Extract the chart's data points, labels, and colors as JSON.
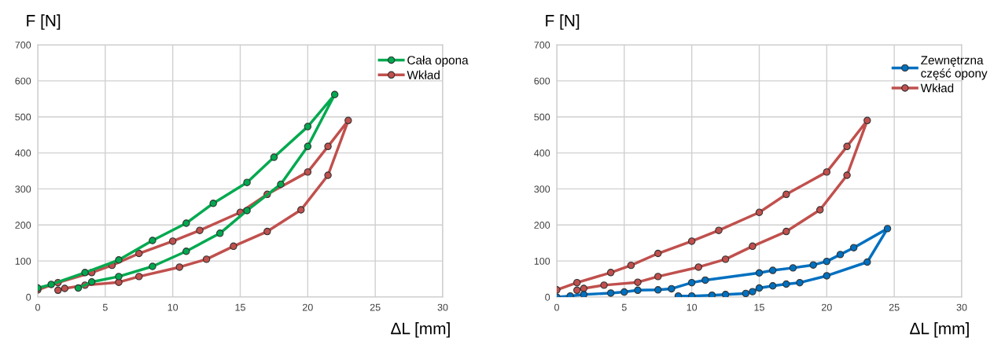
{
  "chart_data": [
    {
      "type": "line",
      "xlabel": "ΔL [mm]",
      "ylabel": "F [N]",
      "xlim": [
        0,
        30
      ],
      "ylim": [
        0,
        700
      ],
      "xticks": [
        0,
        5,
        10,
        15,
        20,
        25,
        30
      ],
      "yticks": [
        0,
        100,
        200,
        300,
        400,
        500,
        600,
        700
      ],
      "grid": true,
      "legend": "top right",
      "marker": "circle",
      "line_style": "solid",
      "series": [
        {
          "name": "Cała opona",
          "color": "#00a94f",
          "x": [
            0,
            1,
            3.5,
            6,
            8.5,
            11,
            13,
            15.5,
            17.5,
            20,
            22,
            20,
            18,
            15.5,
            13.5,
            11,
            8.5,
            6,
            4,
            3
          ],
          "values": [
            25,
            35,
            68,
            103,
            157,
            205,
            260,
            318,
            388,
            473,
            562,
            418,
            313,
            240,
            177,
            127,
            85,
            57,
            42,
            25
          ]
        },
        {
          "name": "Wkład",
          "color": "#c0504d",
          "x": [
            0,
            1.5,
            4,
            5.5,
            7.5,
            10,
            12,
            15,
            17,
            20,
            21.5,
            23,
            21.5,
            19.5,
            17,
            14.5,
            12.5,
            10.5,
            7.5,
            6,
            3.5,
            2,
            1.5
          ],
          "values": [
            20,
            40,
            68,
            88,
            121,
            155,
            185,
            235,
            285,
            347,
            418,
            490,
            338,
            242,
            182,
            141,
            105,
            83,
            57,
            41,
            33,
            24,
            19
          ]
        }
      ]
    },
    {
      "type": "line",
      "xlabel": "ΔL [mm]",
      "ylabel": "F [N]",
      "xlim": [
        0,
        30
      ],
      "ylim": [
        0,
        700
      ],
      "xticks": [
        0,
        5,
        10,
        15,
        20,
        25,
        30
      ],
      "yticks": [
        0,
        100,
        200,
        300,
        400,
        500,
        600,
        700
      ],
      "grid": true,
      "legend": "top right",
      "marker": "circle",
      "line_style": "solid",
      "series": [
        {
          "name": "Zewnętrzna\nczęść opony",
          "color": "#0070c0",
          "x": [
            0,
            1,
            2,
            4,
            5,
            6,
            7.5,
            8.5,
            10,
            11,
            15,
            16,
            17.5,
            19,
            20,
            21,
            22,
            24.5,
            23,
            20,
            18,
            17,
            16,
            15,
            14.5,
            14,
            12.5,
            11.5,
            10,
            9
          ],
          "values": [
            0,
            3,
            7,
            11,
            14,
            19,
            20,
            23,
            40,
            47,
            67,
            74,
            81,
            89,
            99,
            118,
            137,
            190,
            97,
            59,
            40,
            36,
            31,
            25,
            15,
            10,
            7,
            5,
            3,
            3
          ]
        },
        {
          "name": "Wkład",
          "color": "#c0504d",
          "x": [
            0,
            1.5,
            4,
            5.5,
            7.5,
            10,
            12,
            15,
            17,
            20,
            21.5,
            23,
            21.5,
            19.5,
            17,
            14.5,
            12.5,
            10.5,
            7.5,
            6,
            3.5,
            2,
            1.5
          ],
          "values": [
            20,
            40,
            68,
            88,
            121,
            155,
            185,
            235,
            285,
            347,
            418,
            490,
            338,
            242,
            182,
            141,
            105,
            83,
            57,
            41,
            33,
            24,
            19
          ]
        }
      ]
    }
  ]
}
